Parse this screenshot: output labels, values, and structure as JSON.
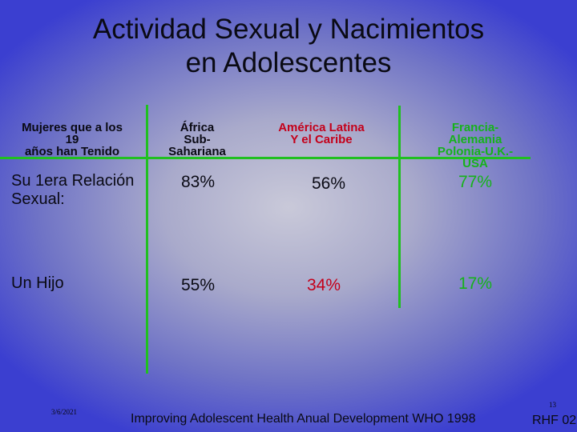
{
  "slide": {
    "title_line1": "Actividad Sexual y Nacimientos",
    "title_line2": "en Adolescentes",
    "row_header": [
      "Mujeres que  a los",
      "19",
      "años han Tenido"
    ],
    "columns": [
      {
        "lines": [
          "África",
          "Sub-",
          "Sahariana"
        ]
      },
      {
        "lines": [
          "América Latina",
          "Y el Caribe"
        ]
      },
      {
        "lines": [
          "Francia-",
          "Alemania",
          "Polonia-U.K.-",
          "USA"
        ]
      }
    ],
    "rows": [
      {
        "label_lines": [
          "Su 1era Relación",
          "Sexual:"
        ],
        "values": [
          "83%",
          "56%",
          "77%"
        ]
      },
      {
        "label_lines": [
          "Un Hijo"
        ],
        "values": [
          "55%",
          "34%",
          "17%"
        ]
      }
    ],
    "date": "3/6/2021",
    "page_number": "13",
    "footer": "Improving Adolescent Health Anual Development WHO 1998",
    "footer_tag": "RHF 02"
  },
  "colors": {
    "accent_green": "#16b21b",
    "accent_red": "#c4001a",
    "text_dark": "#0a0a14"
  }
}
